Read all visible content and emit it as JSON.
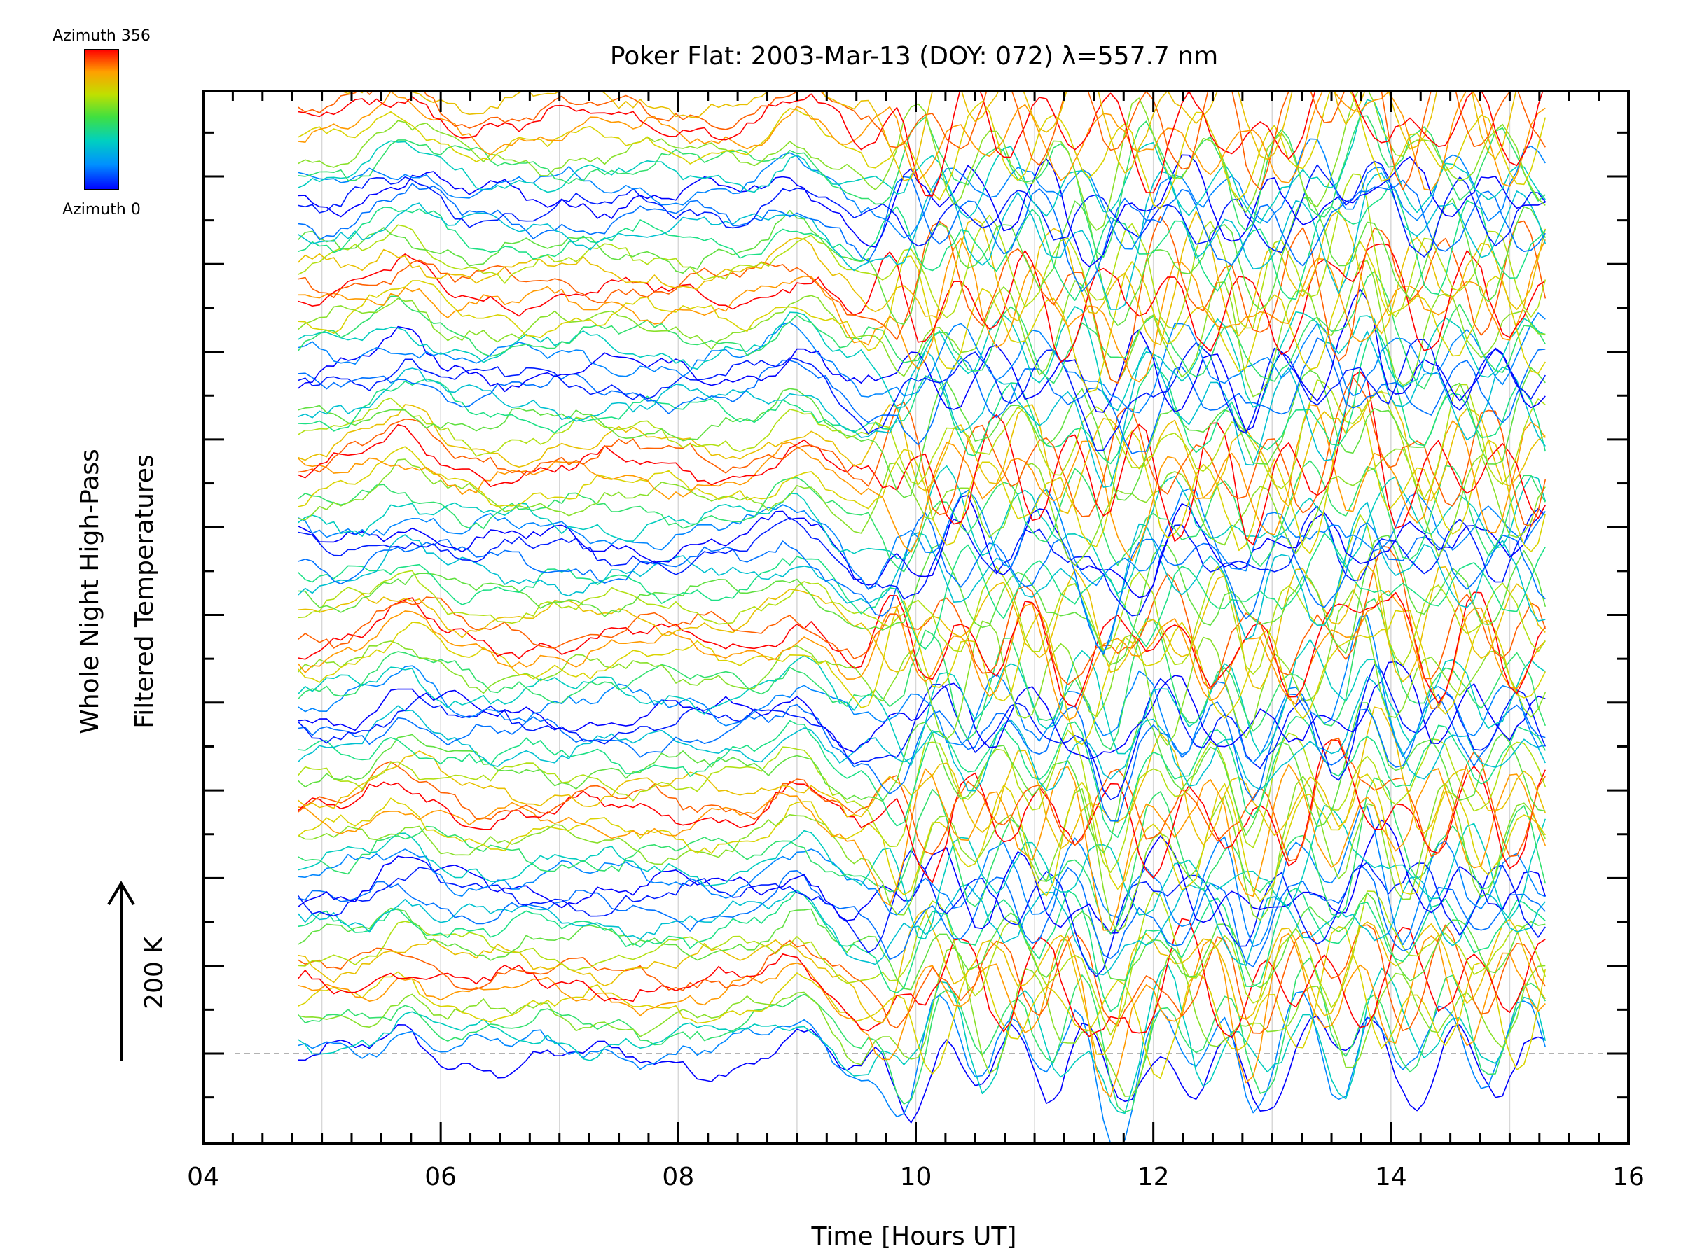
{
  "chart_data": {
    "type": "line",
    "title": "Poker Flat: 2003-Mar-13 (DOY: 072) λ=557.7 nm",
    "xlabel": "Time [Hours UT]",
    "ylabel_line1": "Whole Night High-Pass",
    "ylabel_line2": "Filtered Temperatures",
    "scale_label": "200 K",
    "xlim": [
      4,
      16
    ],
    "x_ticks": [
      "04",
      "06",
      "08",
      "10",
      "12",
      "14",
      "16"
    ],
    "x_range_data": [
      4.8,
      15.3
    ],
    "num_series": 90,
    "series_color_by": "azimuth",
    "colorbar": {
      "label_top": "Azimuth 356",
      "label_bottom": "Azimuth 0",
      "colormap": [
        "#0000ff",
        "#00a0ff",
        "#00e0a0",
        "#60e040",
        "#d0e000",
        "#ffa000",
        "#ff0000"
      ]
    },
    "baseline_dashed": true,
    "grid": "vertical-hourly"
  }
}
